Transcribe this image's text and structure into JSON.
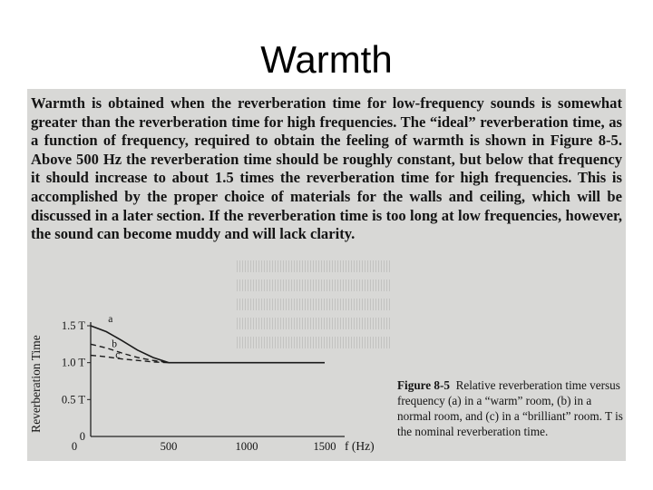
{
  "slide": {
    "title": "Warmth"
  },
  "paragraph": "Warmth is obtained when the reverberation time for low-frequency sounds is somewhat greater than the reverberation time for high frequencies. The “ideal” reverberation time, as a function of frequency, required to obtain the feeling of warmth is shown in Figure 8-5. Above 500 Hz the reverberation time should be roughly constant, but below that frequency it should increase to about 1.5 times the reverberation time for high frequencies. This is accomplished by the proper choice of materials for the walls and ceiling, which will be discussed in a later section. If the reverberation time is too long at low frequencies, however, the sound can become muddy and will lack clarity.",
  "figure": {
    "ylabel": "Reverberation Time",
    "xlabel": "f (Hz)",
    "xticks": [
      "0",
      "500",
      "1000",
      "1500"
    ],
    "yticks": [
      "0",
      "0.5 T",
      "1.0 T",
      "1.5 T"
    ],
    "curve_labels": [
      "a",
      "b",
      "c"
    ],
    "caption_head": "Figure 8-5",
    "caption_body": "Relative reverberation time versus frequency (a) in a “warm” room, (b) in a normal room, and (c) in a “brilliant” room. T is the nominal reverberation time."
  },
  "chart_data": {
    "type": "line",
    "title": "",
    "xlabel": "f (Hz)",
    "ylabel": "Reverberation Time",
    "x": [
      0,
      100,
      200,
      300,
      400,
      500,
      1000,
      1500
    ],
    "xlim": [
      0,
      1500
    ],
    "ylim": [
      0,
      1.5
    ],
    "series": [
      {
        "name": "a",
        "values": [
          1.5,
          1.42,
          1.3,
          1.17,
          1.07,
          1.0,
          1.0,
          1.0
        ],
        "style": "solid"
      },
      {
        "name": "b",
        "values": [
          1.25,
          1.2,
          1.13,
          1.07,
          1.03,
          1.0,
          1.0,
          1.0
        ],
        "style": "dashed"
      },
      {
        "name": "c",
        "values": [
          1.1,
          1.08,
          1.05,
          1.03,
          1.01,
          1.0,
          1.0,
          1.0
        ],
        "style": "dashed"
      }
    ]
  }
}
